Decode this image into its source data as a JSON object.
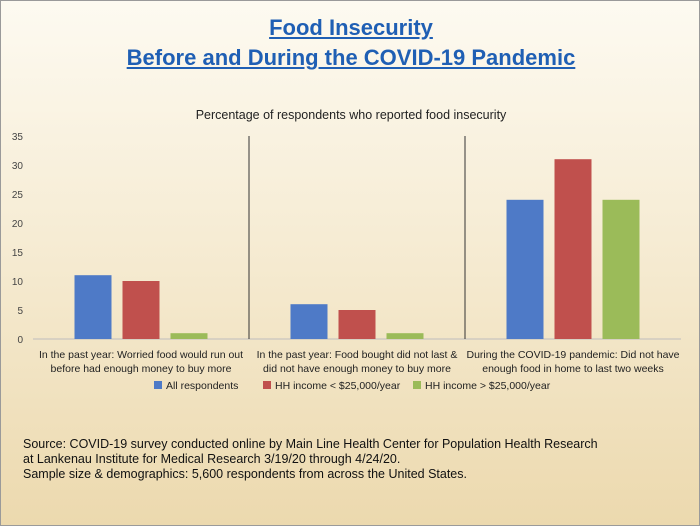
{
  "titles": {
    "line1": "Food Insecurity",
    "line2": "Before and During the COVID-19 Pandemic"
  },
  "chart_data": {
    "type": "bar",
    "title": "Percentage of respondents who reported food insecurity",
    "categories": [
      [
        "In the past year: Worried food would run out",
        "before had enough money to buy more"
      ],
      [
        "In the past year: Food bought did not last &",
        "did not have enough money to buy more"
      ],
      [
        "During the COVID-19 pandemic: Did not have",
        "enough food in home to last two weeks"
      ]
    ],
    "series": [
      {
        "name": "All respondents",
        "color": "#4e7ac7",
        "values": [
          11,
          6,
          24
        ]
      },
      {
        "name": "HH income < $25,000/year",
        "color": "#c0504d",
        "values": [
          10,
          5,
          31
        ]
      },
      {
        "name": "HH income > $25,000/year",
        "color": "#9bbb59",
        "values": [
          1,
          1,
          24
        ]
      }
    ],
    "ylim": [
      0,
      35
    ],
    "yticks": [
      "0",
      "5",
      "10",
      "15",
      "20",
      "25",
      "30",
      "35"
    ],
    "legend_position": "bottom",
    "grid": false
  },
  "footer": {
    "line1": "Source: COVID-19 survey conducted online by Main Line Health Center for Population Health Research",
    "line2": "at Lankenau Institute for Medical Research 3/19/20 through 4/24/20.",
    "line3": "Sample size & demographics: 5,600 respondents from across the United States."
  }
}
